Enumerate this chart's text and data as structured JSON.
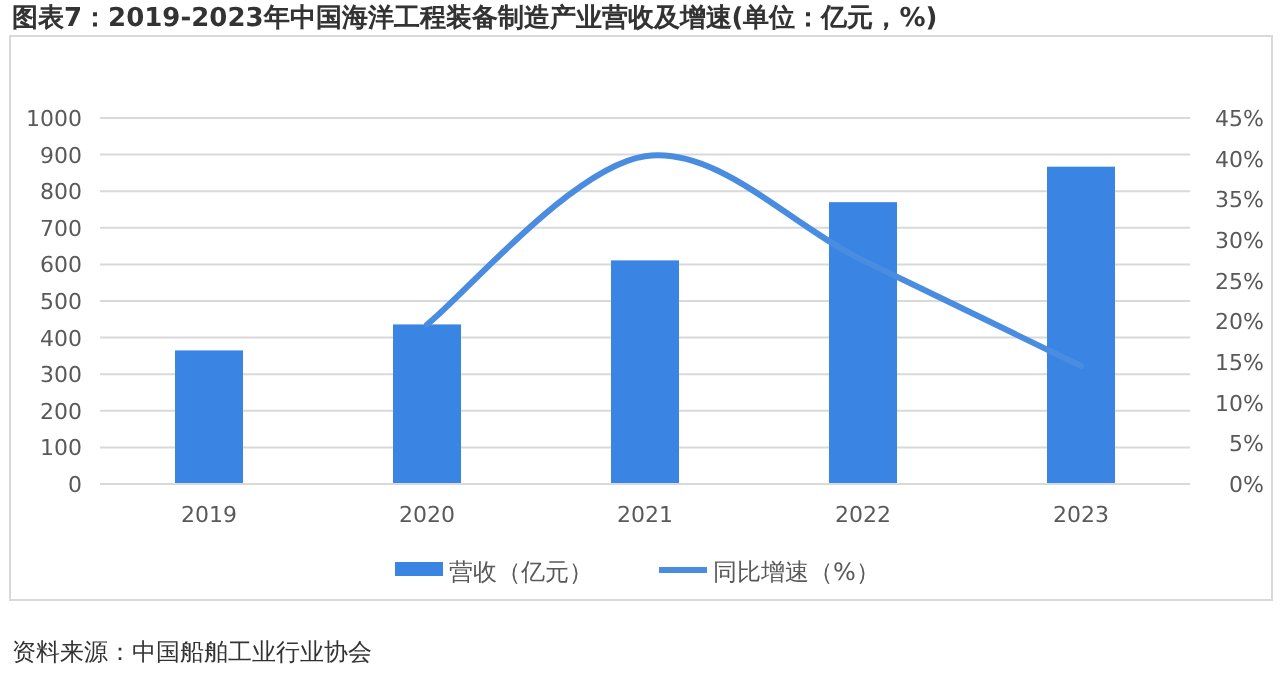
{
  "chart_data": {
    "type": "bar",
    "title": "图表7：2019-2023年中国海洋工程装备制造产业营收及增速(单位：亿元，%)",
    "categories": [
      "2019",
      "2020",
      "2021",
      "2022",
      "2023"
    ],
    "series": [
      {
        "name": "营收（亿元）",
        "color": "#3a85e4",
        "values": [
          365,
          436,
          611,
          770,
          867
        ]
      },
      {
        "name": "同比增速（%）",
        "type": "line",
        "axis": "y2",
        "color": "#4a8ce0",
        "values": [
          null,
          19.6,
          40.3,
          27.5,
          14.5
        ]
      }
    ],
    "ylim": [
      0,
      1000
    ],
    "yticks": [
      0,
      100,
      200,
      300,
      400,
      500,
      600,
      700,
      800,
      900,
      1000
    ],
    "y2lim": [
      0,
      45
    ],
    "y2ticks": [
      {
        "value": 0,
        "label": "0%"
      },
      {
        "value": 5,
        "label": "5%"
      },
      {
        "value": 10,
        "label": "10%"
      },
      {
        "value": 15,
        "label": "15%"
      },
      {
        "value": 20,
        "label": "20%"
      },
      {
        "value": 25,
        "label": "25%"
      },
      {
        "value": 30,
        "label": "30%"
      },
      {
        "value": 35,
        "label": "35%"
      },
      {
        "value": 40,
        "label": "40%"
      },
      {
        "value": 45,
        "label": "45%"
      }
    ],
    "grid": "y",
    "legend": "bottom",
    "annotations": [
      "资料来源：中国船舶工业行业协会"
    ]
  }
}
